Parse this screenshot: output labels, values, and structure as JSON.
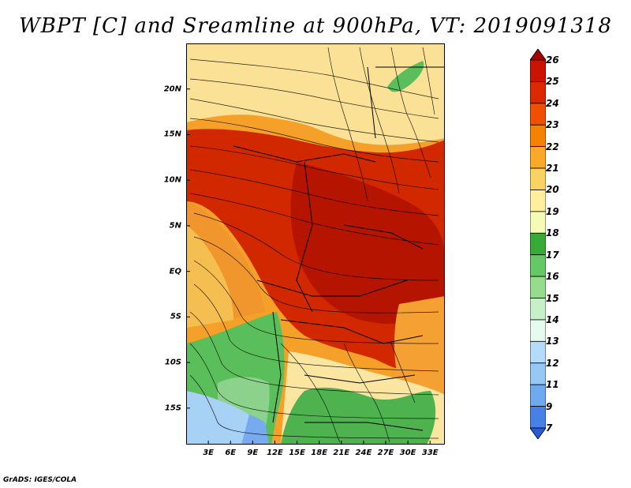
{
  "title": "WBPT [C] and Sreamline at 900hPa, VT: 2019091318",
  "credit": "GrADS: IGES/COLA",
  "map": {
    "lat_range": [
      -19,
      25
    ],
    "lon_range": [
      0,
      35
    ],
    "lat_ticks": [
      {
        "label": "20N",
        "lat": 20
      },
      {
        "label": "15N",
        "lat": 15
      },
      {
        "label": "10N",
        "lat": 10
      },
      {
        "label": "5N",
        "lat": 5
      },
      {
        "label": "EQ",
        "lat": 0
      },
      {
        "label": "5S",
        "lat": -5
      },
      {
        "label": "10S",
        "lat": -10
      },
      {
        "label": "15S",
        "lat": -15
      }
    ],
    "lon_ticks": [
      {
        "label": "3E",
        "lon": 3
      },
      {
        "label": "6E",
        "lon": 6
      },
      {
        "label": "9E",
        "lon": 9
      },
      {
        "label": "12E",
        "lon": 12
      },
      {
        "label": "15E",
        "lon": 15
      },
      {
        "label": "18E",
        "lon": 18
      },
      {
        "label": "21E",
        "lon": 21
      },
      {
        "label": "24E",
        "lon": 24
      },
      {
        "label": "27E",
        "lon": 27
      },
      {
        "label": "30E",
        "lon": 30
      },
      {
        "label": "33E",
        "lon": 33
      }
    ],
    "variable": "Wet-bulb potential temperature",
    "units": "C",
    "level": "900hPa",
    "valid_time": "2019091318"
  },
  "colorbar": {
    "labels": [
      "26",
      "25",
      "24",
      "23",
      "22",
      "21",
      "20",
      "19",
      "18",
      "17",
      "16",
      "15",
      "14",
      "13",
      "12",
      "11",
      "9",
      "7"
    ],
    "colors": [
      "#a50000",
      "#c81400",
      "#dc2800",
      "#f05000",
      "#f58200",
      "#faaa28",
      "#fad264",
      "#fff0a0",
      "#f5fab4",
      "#37aa37",
      "#64c864",
      "#96dc8c",
      "#c8f0c8",
      "#e6faf0",
      "#b4dcfa",
      "#96c8f5",
      "#6eaaf0",
      "#4682e6",
      "#285adc"
    ]
  }
}
